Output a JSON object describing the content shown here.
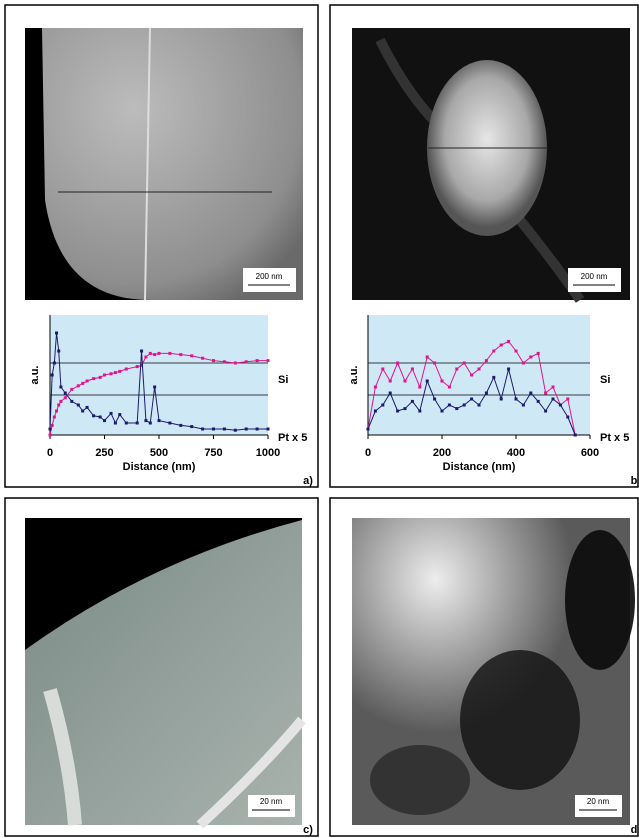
{
  "chart_data": [
    {
      "type": "line",
      "x_label": "Distance (nm)",
      "y_label": "a.u.",
      "x": [
        0,
        10,
        20,
        30,
        40,
        50,
        70,
        100,
        130,
        150,
        170,
        200,
        230,
        250,
        280,
        300,
        320,
        350,
        400,
        420,
        440,
        460,
        480,
        500,
        550,
        600,
        650,
        700,
        750,
        800,
        850,
        900,
        950,
        1000
      ],
      "series": [
        {
          "name": "Si",
          "color": "#e0158a",
          "values": [
            0,
            8,
            15,
            20,
            25,
            28,
            31,
            38,
            41,
            43,
            45,
            47,
            48,
            50,
            51,
            52,
            53,
            55,
            57,
            58,
            65,
            68,
            67,
            68,
            68,
            67,
            66,
            64,
            62,
            61,
            60,
            61,
            62,
            62
          ]
        },
        {
          "name": "Pt x 5",
          "color": "#1c1a6e",
          "values": [
            5,
            50,
            60,
            85,
            70,
            40,
            35,
            28,
            25,
            20,
            23,
            16,
            15,
            12,
            18,
            10,
            17,
            10,
            10,
            70,
            12,
            10,
            40,
            12,
            10,
            8,
            7,
            5,
            5,
            5,
            4,
            5,
            5,
            5
          ]
        }
      ],
      "xlim": [
        0,
        1000
      ],
      "xticks": [
        0,
        250,
        500,
        750,
        1000
      ],
      "ylim": [
        0,
        100
      ]
    },
    {
      "type": "line",
      "x_label": "Distance (nm)",
      "y_label": "a.u.",
      "x": [
        0,
        20,
        40,
        60,
        80,
        100,
        120,
        140,
        160,
        180,
        200,
        220,
        240,
        260,
        280,
        300,
        320,
        340,
        360,
        380,
        400,
        420,
        440,
        460,
        480,
        500,
        520,
        540,
        560
      ],
      "series": [
        {
          "name": "Si",
          "color": "#e0158a",
          "values": [
            5,
            40,
            55,
            45,
            60,
            45,
            55,
            40,
            65,
            60,
            45,
            40,
            55,
            60,
            50,
            55,
            62,
            70,
            75,
            78,
            70,
            60,
            65,
            68,
            35,
            40,
            25,
            30,
            0
          ]
        },
        {
          "name": "Pt x 5",
          "color": "#1c1a6e",
          "values": [
            5,
            20,
            25,
            35,
            20,
            22,
            28,
            20,
            45,
            30,
            20,
            25,
            22,
            25,
            30,
            25,
            35,
            48,
            30,
            55,
            30,
            25,
            35,
            28,
            20,
            30,
            25,
            15,
            0
          ]
        }
      ],
      "xlim": [
        0,
        600
      ],
      "xticks": [
        0,
        200,
        400,
        600
      ],
      "ylim": [
        0,
        100
      ]
    }
  ],
  "panels": [
    {
      "label": "a)",
      "scale": "200 nm"
    },
    {
      "label": "b",
      "scale": "200 nm"
    },
    {
      "label": "c)",
      "scale": "20 nm"
    },
    {
      "label": "d",
      "scale": "20 nm"
    }
  ]
}
